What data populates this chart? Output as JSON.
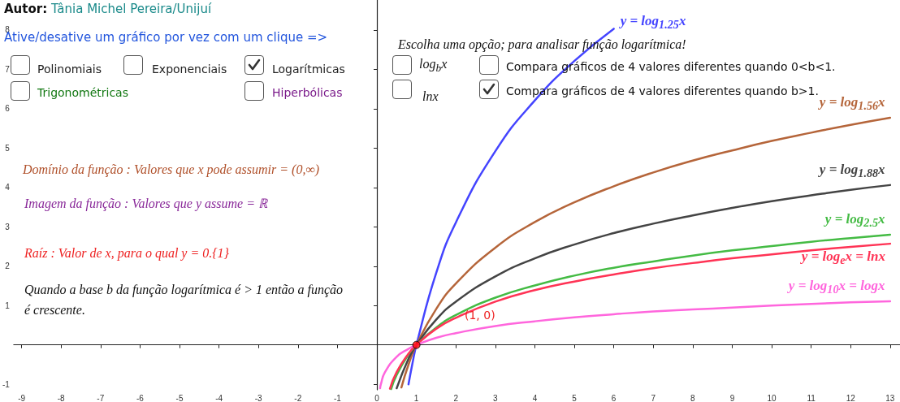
{
  "chart_data": {
    "type": "line",
    "title": "Autor: Tânia Michel Pereira/Unijuí",
    "annotations": [
      "Ative/desative um gráfico por vez com um clique =>",
      "Polinomiais",
      "Exponenciais",
      "Logarítmicas",
      "Trigonométricas",
      "Hiperbólicas",
      "Escolha uma opção; para analisar função logarítmica!",
      "log$_{b}$x",
      "lnx",
      "Compara  gráficos de 4 valores diferentes quando 0<b<1.",
      "Compara  gráficos de 4 valores diferentes quando b>1.",
      "Domínio da função : Valores que x pode assumir = (0,∞)",
      "Imagem da função : Valores que y assume = ℝ",
      "Raíz : Valor de x, para o qual y = 0.{1}",
      "Quando a base b da função logarítmica é > 1 então a função é crescente.",
      "(1, 0)"
    ],
    "series": [
      {
        "name": "y = log$_{1.25}$x",
        "color": "#4444ff",
        "x": [
          0.8,
          0.9,
          1,
          1.5,
          2,
          3,
          4,
          5,
          6
        ],
        "values": [
          -1.0,
          -0.47,
          0,
          1.82,
          3.11,
          4.92,
          6.21,
          7.21,
          8.03
        ]
      },
      {
        "name": "y = log$_{1.56}$x",
        "color": "#b5653a",
        "x": [
          0.62,
          0.8,
          1,
          1.5,
          2,
          3,
          4,
          5,
          6,
          7,
          8,
          9,
          10,
          11,
          12,
          13
        ],
        "values": [
          -1.08,
          -0.5,
          0,
          0.91,
          1.56,
          2.47,
          3.12,
          3.62,
          4.03,
          4.38,
          4.68,
          4.94,
          5.18,
          5.39,
          5.59,
          5.77
        ]
      },
      {
        "name": "y = log$_{1.88}$x",
        "color": "#444444",
        "x": [
          0.5,
          0.8,
          1,
          1.5,
          2,
          3,
          4,
          5,
          6,
          7,
          8,
          9,
          10,
          11,
          12,
          13
        ],
        "values": [
          -1.1,
          -0.35,
          0,
          0.64,
          1.1,
          1.74,
          2.2,
          2.55,
          2.84,
          3.08,
          3.29,
          3.48,
          3.65,
          3.8,
          3.94,
          4.06
        ]
      },
      {
        "name": "y = log$_{2.5}$x",
        "color": "#44bb44",
        "x": [
          0.36,
          0.5,
          0.8,
          1,
          1.5,
          2,
          3,
          4,
          5,
          6,
          7,
          8,
          9,
          10,
          11,
          12,
          13
        ],
        "values": [
          -1.12,
          -0.76,
          -0.24,
          0,
          0.44,
          0.76,
          1.2,
          1.51,
          1.76,
          1.96,
          2.12,
          2.27,
          2.4,
          2.51,
          2.62,
          2.71,
          2.8
        ]
      },
      {
        "name": "y = log$_{e}$x = lnx",
        "color": "#ff3355",
        "x": [
          0.33,
          0.5,
          0.8,
          1,
          1.5,
          2,
          3,
          4,
          5,
          6,
          7,
          8,
          9,
          10,
          11,
          12,
          13
        ],
        "values": [
          -1.11,
          -0.69,
          -0.22,
          0,
          0.41,
          0.69,
          1.1,
          1.39,
          1.61,
          1.79,
          1.95,
          2.08,
          2.2,
          2.3,
          2.4,
          2.49,
          2.57
        ]
      },
      {
        "name": "y = log$_{10}$x = logx",
        "color": "#ff66dd",
        "x": [
          0.08,
          0.1,
          0.2,
          0.5,
          0.8,
          1,
          1.5,
          2,
          3,
          4,
          5,
          6,
          7,
          8,
          9,
          10,
          11,
          12,
          13
        ],
        "values": [
          -1.1,
          -1,
          -0.7,
          -0.3,
          -0.1,
          0,
          0.18,
          0.3,
          0.48,
          0.6,
          0.7,
          0.78,
          0.85,
          0.9,
          0.95,
          1,
          1.04,
          1.08,
          1.11
        ]
      },
      {
        "type": "scatter",
        "color": "#ff0000",
        "marker": "circle",
        "x": [
          1
        ],
        "values": [
          0
        ]
      }
    ],
    "xlim": [
      -9.2,
      13.25
    ],
    "ylim": [
      -1.14,
      8.76
    ],
    "xticks": [
      -9,
      -8,
      -7,
      -6,
      -5,
      -4,
      -3,
      -2,
      -1,
      0,
      1,
      2,
      3,
      4,
      5,
      6,
      7,
      8,
      9,
      10,
      11,
      12,
      13
    ],
    "yticks": [
      -1,
      1,
      2,
      3,
      4,
      5,
      6,
      7,
      8
    ],
    "legend": false,
    "line_style": "solid"
  }
}
